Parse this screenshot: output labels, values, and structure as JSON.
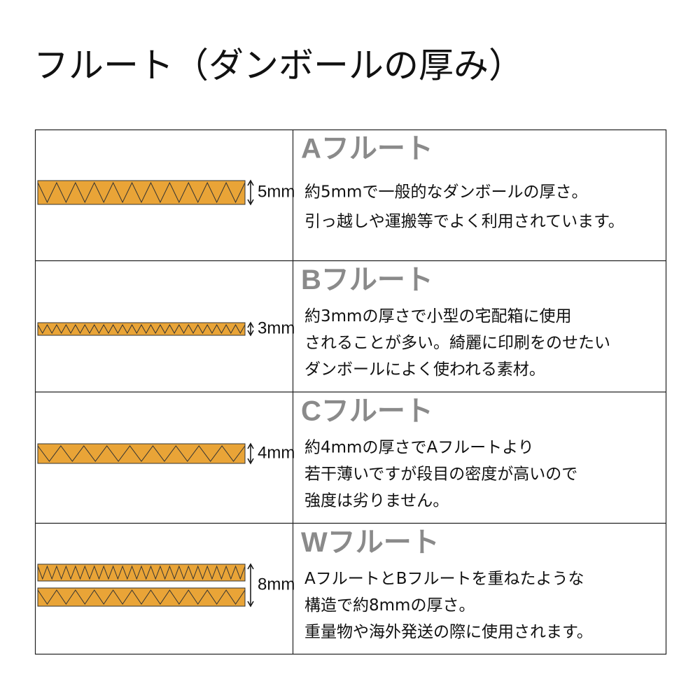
{
  "title": "フルート（ダンボールの厚み）",
  "rows": [
    {
      "name": "Aフルート",
      "thickness": "5mm",
      "description": [
        "約5mmで一般的なダンボールの厚さ。",
        "引っ越しや運搬等でよく利用されています。"
      ]
    },
    {
      "name": "Bフルート",
      "thickness": "3mm",
      "description": [
        "約3mmの厚さで小型の宅配箱に使用",
        "されることが多い。綺麗に印刷をのせたい",
        "ダンボールによく使われる素材。"
      ]
    },
    {
      "name": "Cフルート",
      "thickness": "4mm",
      "description": [
        "約4mmの厚さでAフルートより",
        "若干薄いですが段目の密度が高いので",
        "強度は劣りません。"
      ]
    },
    {
      "name": "Wフルート",
      "thickness": "8mm",
      "description": [
        "AフルートとBフルートを重ねたような",
        "構造で約8mmの厚さ。",
        "重量物や海外発送の際に使用されます。"
      ]
    }
  ]
}
